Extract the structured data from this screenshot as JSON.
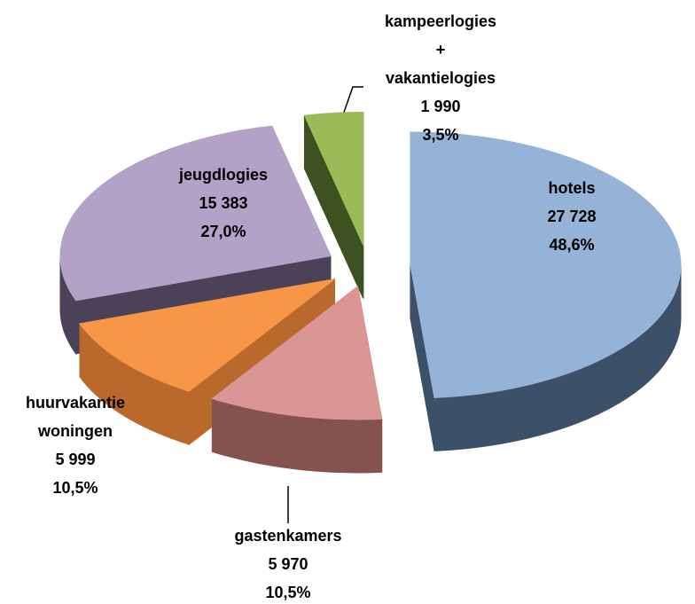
{
  "chart_data": {
    "type": "pie3d",
    "categories": [
      "hotels",
      "gastenkamers",
      "huurvakantie woningen",
      "jeugdlogies",
      "kampeerlogies + vakantielogies"
    ],
    "values": [
      27728,
      5970,
      5999,
      15383,
      1990
    ],
    "value_labels": [
      "27 728",
      "5 970",
      "5 999",
      "15 383",
      "1 990"
    ],
    "percentages": [
      48.6,
      10.5,
      10.5,
      27.0,
      3.5
    ],
    "percentage_labels": [
      "48,6%",
      "10,5%",
      "10,5%",
      "27,0%",
      "3,5%"
    ],
    "colors": [
      "#95b3d7",
      "#d99694",
      "#f79646",
      "#b3a2c7",
      "#9bbb59"
    ],
    "side_colors": [
      "#3d5069",
      "#85524f",
      "#b8692b",
      "#4b4259",
      "#3e5120"
    ]
  }
}
